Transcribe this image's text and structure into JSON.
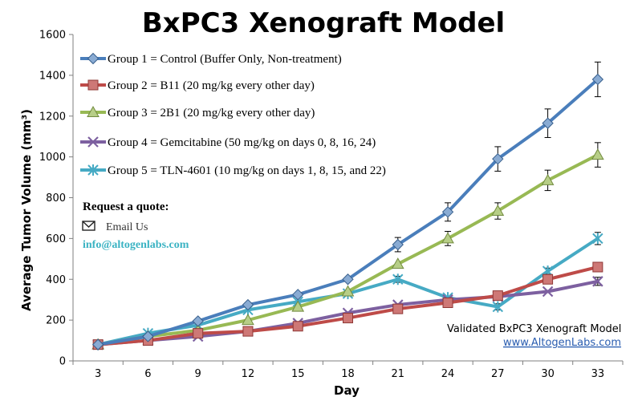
{
  "chart_data": {
    "type": "line",
    "title": "BxPC3 Xenograft Model",
    "xlabel": "Day",
    "ylabel": "Average Tumor Volume (mm³)",
    "x": [
      3,
      6,
      9,
      12,
      15,
      18,
      21,
      24,
      27,
      30,
      33
    ],
    "ylim": [
      0,
      1600
    ],
    "yticks": [
      0,
      200,
      400,
      600,
      800,
      1000,
      1200,
      1400,
      1600
    ],
    "grid": false,
    "legend_position": "top-left",
    "series": [
      {
        "name": "Group 1 = Control (Buffer Only, Non-treatment)",
        "color": "#4a7ebb",
        "marker": "diamond",
        "values": [
          80,
          120,
          195,
          275,
          325,
          400,
          570,
          730,
          990,
          1165,
          1380
        ],
        "errors": [
          0,
          0,
          0,
          0,
          0,
          0,
          35,
          45,
          60,
          70,
          85
        ]
      },
      {
        "name": "Group 2 = B11 (20 mg/kg every other day)",
        "color": "#be4b48",
        "marker": "square",
        "values": [
          80,
          100,
          135,
          145,
          170,
          210,
          255,
          285,
          320,
          400,
          460
        ],
        "errors": [
          0,
          0,
          0,
          0,
          0,
          0,
          0,
          0,
          0,
          0,
          0
        ]
      },
      {
        "name": "Group 3 =  2B1 (20 mg/kg every other day)",
        "color": "#98b954",
        "marker": "triangle",
        "values": [
          80,
          120,
          150,
          200,
          265,
          340,
          475,
          600,
          735,
          885,
          1010
        ],
        "errors": [
          0,
          0,
          0,
          0,
          0,
          0,
          0,
          35,
          40,
          50,
          60
        ]
      },
      {
        "name": "Group 4 =  Gemcitabine (50 mg/kg on days 0, 8, 16, 24)",
        "color": "#7d60a0",
        "marker": "x",
        "values": [
          80,
          100,
          120,
          145,
          185,
          235,
          275,
          300,
          315,
          340,
          390
        ],
        "errors": [
          0,
          0,
          0,
          0,
          0,
          0,
          0,
          0,
          0,
          0,
          20
        ]
      },
      {
        "name": "Group 5 = TLN-4601 (10 mg/kg on days 1, 8, 15, and 22)",
        "color": "#46aac4",
        "marker": "star",
        "values": [
          80,
          135,
          175,
          250,
          290,
          330,
          400,
          310,
          265,
          440,
          600
        ],
        "errors": [
          0,
          0,
          0,
          0,
          0,
          0,
          15,
          0,
          15,
          15,
          30
        ]
      }
    ]
  },
  "annotations": {
    "quote_title": "Request a quote:",
    "email_label": "Email Us",
    "email_address": "info@altogenlabs.com",
    "validated_text": "Validated BxPC3 Xenograft Model",
    "website": "www.AltogenLabs.com"
  }
}
